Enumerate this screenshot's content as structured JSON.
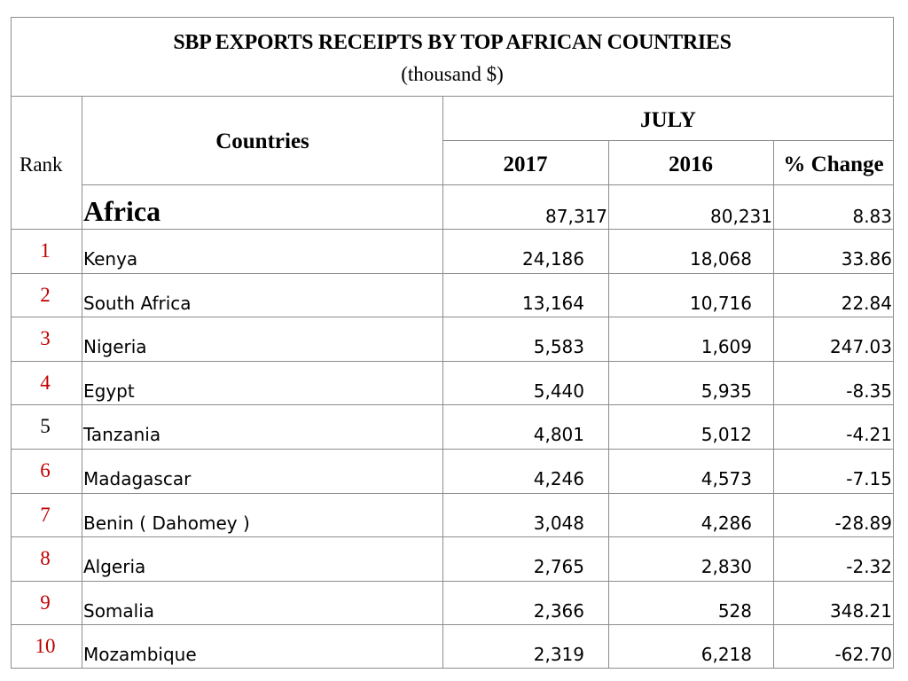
{
  "header": {
    "title": "SBP EXPORTS RECEIPTS BY TOP AFRICAN COUNTRIES",
    "subtitle": "(thousand $)"
  },
  "columns": {
    "rank": "Rank",
    "countries": "Countries",
    "period": "JULY",
    "year_current": "2017",
    "year_previous": "2016",
    "change": "% Change"
  },
  "total": {
    "label": "Africa",
    "v2017": "87,317",
    "v2016": "80,231",
    "change": "8.83"
  },
  "colors": {
    "rank_highlight": "#c00000",
    "rank_default": "#000000",
    "grid": "#8c8c8c"
  },
  "rows": [
    {
      "rank": "1",
      "country": "Kenya",
      "v2017": "24,186",
      "v2016": "18,068",
      "change": "33.86",
      "highlight": true
    },
    {
      "rank": "2",
      "country": "South Africa",
      "v2017": "13,164",
      "v2016": "10,716",
      "change": "22.84",
      "highlight": true
    },
    {
      "rank": "3",
      "country": "Nigeria",
      "v2017": "5,583",
      "v2016": "1,609",
      "change": "247.03",
      "highlight": true
    },
    {
      "rank": "4",
      "country": "Egypt",
      "v2017": "5,440",
      "v2016": "5,935",
      "change": "-8.35",
      "highlight": true
    },
    {
      "rank": "5",
      "country": "Tanzania",
      "v2017": "4,801",
      "v2016": "5,012",
      "change": "-4.21",
      "highlight": false
    },
    {
      "rank": "6",
      "country": "Madagascar",
      "v2017": "4,246",
      "v2016": "4,573",
      "change": "-7.15",
      "highlight": true
    },
    {
      "rank": "7",
      "country": "Benin ( Dahomey )",
      "v2017": "3,048",
      "v2016": "4,286",
      "change": "-28.89",
      "highlight": true
    },
    {
      "rank": "8",
      "country": "Algeria",
      "v2017": "2,765",
      "v2016": "2,830",
      "change": "-2.32",
      "highlight": true
    },
    {
      "rank": "9",
      "country": "Somalia",
      "v2017": "2,366",
      "v2016": "528",
      "change": "348.21",
      "highlight": true
    },
    {
      "rank": "10",
      "country": "Mozambique",
      "v2017": "2,319",
      "v2016": "6,218",
      "change": "-62.70",
      "highlight": true
    }
  ]
}
